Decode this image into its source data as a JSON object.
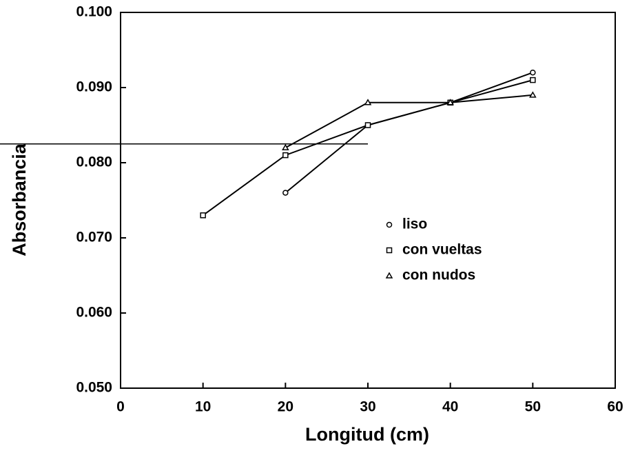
{
  "chart_data": {
    "type": "line",
    "xlabel": "Longitud (cm)",
    "ylabel": "Absorbancia",
    "xlim": [
      0,
      60
    ],
    "xticks": [
      0,
      10,
      20,
      30,
      40,
      50,
      60
    ],
    "ylim": [
      0.05,
      0.1
    ],
    "yticks": [
      {
        "value": 0.05,
        "label": "0.050"
      },
      {
        "value": 0.06,
        "label": "0.060"
      },
      {
        "value": 0.07,
        "label": "0.070"
      },
      {
        "value": 0.08,
        "label": "0.080"
      },
      {
        "value": 0.09,
        "label": "0.090"
      },
      {
        "value": 0.1,
        "label": "0.100"
      }
    ],
    "series": [
      {
        "name": "liso",
        "color": "#000000",
        "marker": "circle",
        "x": [
          20,
          30,
          40,
          50
        ],
        "values": [
          0.076,
          0.085,
          0.088,
          0.092
        ]
      },
      {
        "name": "con vueltas",
        "color": "#000000",
        "marker": "square",
        "x": [
          10,
          20,
          30,
          40,
          50
        ],
        "values": [
          0.073,
          0.081,
          0.085,
          0.088,
          0.091
        ]
      },
      {
        "name": "con nudos",
        "color": "#000000",
        "marker": "triangle",
        "x": [
          20,
          30,
          40,
          50
        ],
        "values": [
          0.082,
          0.088,
          0.088,
          0.089
        ]
      }
    ],
    "hline": {
      "y": 0.0825,
      "x_end": 30
    }
  }
}
